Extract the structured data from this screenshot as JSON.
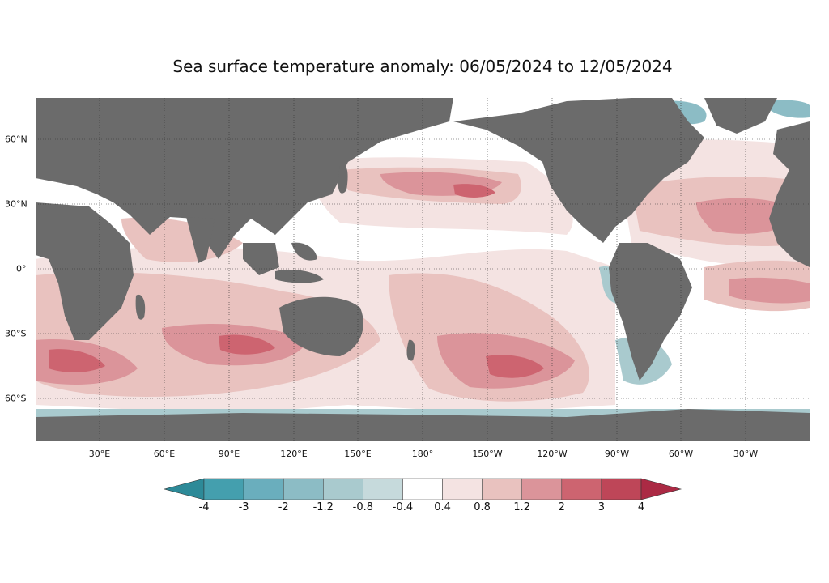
{
  "title": "Sea surface temperature anomaly: 06/05/2024 to 12/05/2024",
  "map": {
    "projection": "equirectangular, Pacific-centered (0°E to 360°E)",
    "land_color": "#6b6b6b",
    "ocean_neutral_color": "#ffffff",
    "lon_ticks": [
      "30°E",
      "60°E",
      "90°E",
      "120°E",
      "150°E",
      "180°",
      "150°W",
      "120°W",
      "90°W",
      "60°W",
      "30°W"
    ],
    "lat_ticks": [
      "60°N",
      "30°N",
      "0°",
      "30°S",
      "60°S"
    ]
  },
  "colorbar": {
    "ticks": [
      "-4",
      "-3",
      "-2",
      "-1.2",
      "-0.8",
      "-0.4",
      "0.4",
      "0.8",
      "1.2",
      "2",
      "3",
      "4"
    ],
    "colors": [
      "#2d8a98",
      "#449fae",
      "#6aaebd",
      "#8cbcc5",
      "#a9cace",
      "#c6dadc",
      "#ffffff",
      "#f4e3e2",
      "#e9c2bf",
      "#db949a",
      "#cd6470",
      "#be4658",
      "#ab2a44"
    ],
    "extend": "both"
  }
}
